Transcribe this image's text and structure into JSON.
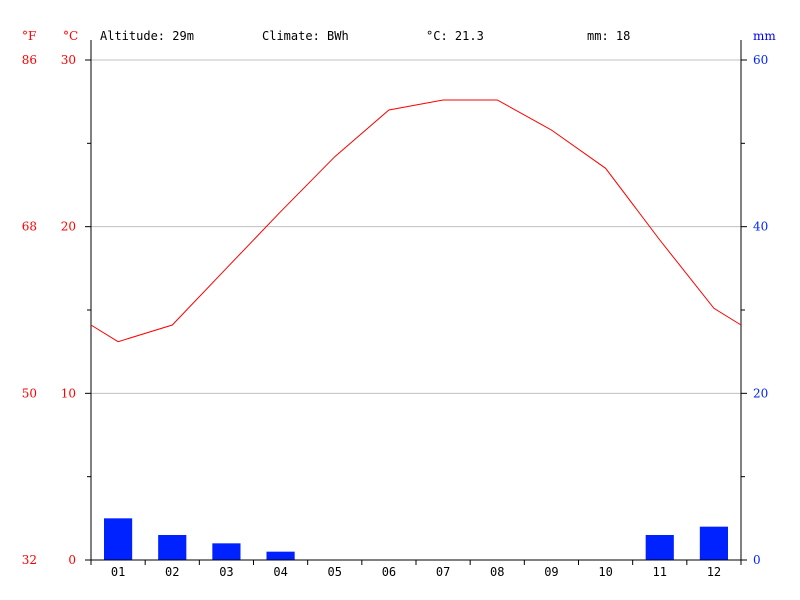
{
  "header": {
    "altitude": "Altitude: 29m",
    "climate": "Climate: BWh",
    "temp_mean": "°C: 21.3",
    "precip_total": "mm: 18"
  },
  "units": {
    "fahrenheit": "°F",
    "celsius": "°C",
    "mm": "mm"
  },
  "colors": {
    "temperature": "#ff0000",
    "precipitation": "#0022ff",
    "grid": "#c0c0c0",
    "axis": "#000000"
  },
  "chart_data": {
    "type": "bar+line",
    "categories": [
      "01",
      "02",
      "03",
      "04",
      "05",
      "06",
      "07",
      "08",
      "09",
      "10",
      "11",
      "12"
    ],
    "series": [
      {
        "name": "°C",
        "type": "line",
        "axis": "left",
        "values": [
          13.1,
          14.1,
          17.5,
          20.9,
          24.2,
          27.0,
          27.6,
          27.6,
          25.8,
          23.5,
          19.2,
          15.1
        ],
        "edge_values": [
          14.1,
          14.1
        ]
      },
      {
        "name": "mm",
        "type": "bar",
        "axis": "right",
        "values": [
          5,
          3,
          2,
          1,
          0,
          0,
          0,
          0,
          0,
          0,
          3,
          4
        ]
      }
    ],
    "left_axis": {
      "unit": "°C",
      "range": [
        0,
        30
      ],
      "ticks": [
        "0",
        "10",
        "20",
        "30"
      ]
    },
    "fahrenheit_axis": {
      "unit": "°F",
      "ticks": [
        "32",
        "50",
        "68",
        "86"
      ]
    },
    "right_axis": {
      "unit": "mm",
      "range": [
        0,
        60
      ],
      "ticks": [
        "0",
        "20",
        "40",
        "60"
      ]
    },
    "grid": true
  }
}
